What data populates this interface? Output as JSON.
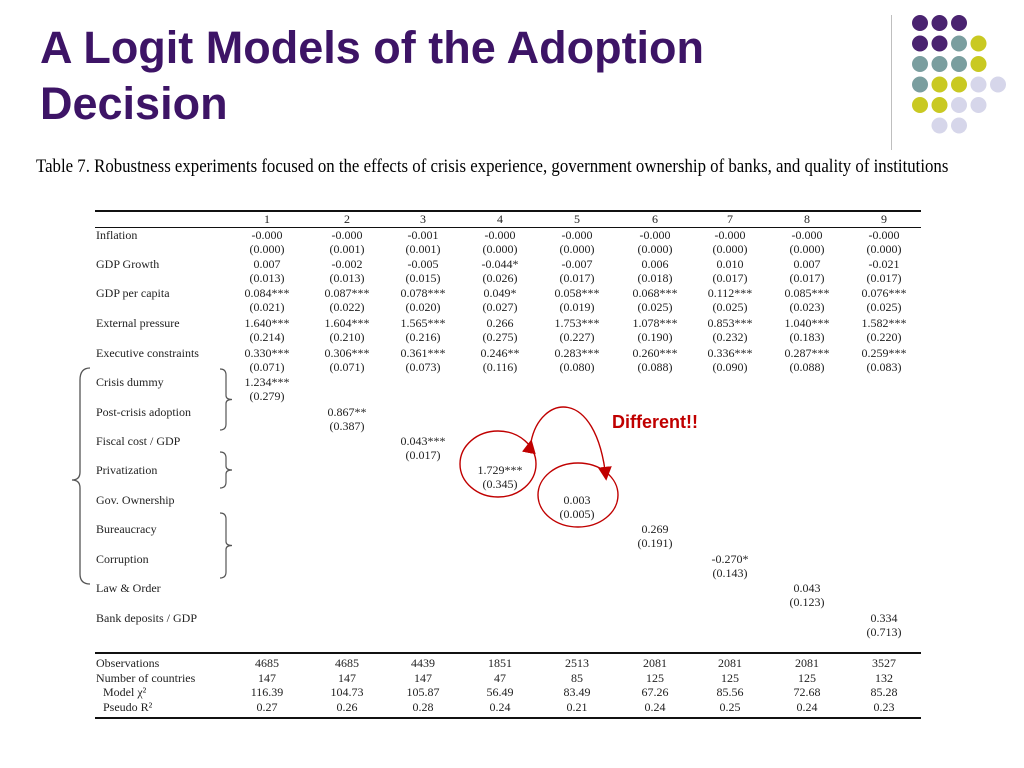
{
  "slide": {
    "title": "A Logit Models of the Adoption Decision",
    "caption": "Table 7.  Robustness experiments focused on the effects of crisis experience, government ownership of banks, and quality of institutions",
    "annotation": "Different!!",
    "accent_colors": {
      "purple": "#4a2370",
      "teal": "#7a9e9f",
      "yellow": "#c9c922",
      "lavender": "#d6d6ea",
      "red": "#c00000"
    }
  },
  "table": {
    "columns": [
      "1",
      "2",
      "3",
      "4",
      "5",
      "6",
      "7",
      "8",
      "9"
    ],
    "rows": [
      {
        "label": "Inflation",
        "cells": [
          [
            "-0.000",
            "(0.000)"
          ],
          [
            "-0.000",
            "(0.001)"
          ],
          [
            "-0.001",
            "(0.001)"
          ],
          [
            "-0.000",
            "(0.000)"
          ],
          [
            "-0.000",
            "(0.000)"
          ],
          [
            "-0.000",
            "(0.000)"
          ],
          [
            "-0.000",
            "(0.000)"
          ],
          [
            "-0.000",
            "(0.000)"
          ],
          [
            "-0.000",
            "(0.000)"
          ]
        ]
      },
      {
        "label": "GDP Growth",
        "cells": [
          [
            "0.007",
            "(0.013)"
          ],
          [
            "-0.002",
            "(0.013)"
          ],
          [
            "-0.005",
            "(0.015)"
          ],
          [
            "-0.044*",
            "(0.026)"
          ],
          [
            "-0.007",
            "(0.017)"
          ],
          [
            "0.006",
            "(0.018)"
          ],
          [
            "0.010",
            "(0.017)"
          ],
          [
            "0.007",
            "(0.017)"
          ],
          [
            "-0.021",
            "(0.017)"
          ]
        ]
      },
      {
        "label": "GDP per capita",
        "cells": [
          [
            "0.084***",
            "(0.021)"
          ],
          [
            "0.087***",
            "(0.022)"
          ],
          [
            "0.078***",
            "(0.020)"
          ],
          [
            "0.049*",
            "(0.027)"
          ],
          [
            "0.058***",
            "(0.019)"
          ],
          [
            "0.068***",
            "(0.025)"
          ],
          [
            "0.112***",
            "(0.025)"
          ],
          [
            "0.085***",
            "(0.023)"
          ],
          [
            "0.076***",
            "(0.025)"
          ]
        ]
      },
      {
        "label": "External pressure",
        "cells": [
          [
            "1.640***",
            "(0.214)"
          ],
          [
            "1.604***",
            "(0.210)"
          ],
          [
            "1.565***",
            "(0.216)"
          ],
          [
            "0.266",
            "(0.275)"
          ],
          [
            "1.753***",
            "(0.227)"
          ],
          [
            "1.078***",
            "(0.190)"
          ],
          [
            "0.853***",
            "(0.232)"
          ],
          [
            "1.040***",
            "(0.183)"
          ],
          [
            "1.582***",
            "(0.220)"
          ]
        ]
      },
      {
        "label": "Executive constraints",
        "cells": [
          [
            "0.330***",
            "(0.071)"
          ],
          [
            "0.306***",
            "(0.071)"
          ],
          [
            "0.361***",
            "(0.073)"
          ],
          [
            "0.246**",
            "(0.116)"
          ],
          [
            "0.283***",
            "(0.080)"
          ],
          [
            "0.260***",
            "(0.088)"
          ],
          [
            "0.336***",
            "(0.090)"
          ],
          [
            "0.287***",
            "(0.088)"
          ],
          [
            "0.259***",
            "(0.083)"
          ]
        ]
      },
      {
        "label": "Crisis dummy",
        "cells": [
          [
            "1.234***",
            "(0.279)"
          ],
          null,
          null,
          null,
          null,
          null,
          null,
          null,
          null
        ]
      },
      {
        "label": "Post-crisis adoption",
        "cells": [
          null,
          [
            "0.867**",
            "(0.387)"
          ],
          null,
          null,
          null,
          null,
          null,
          null,
          null
        ]
      },
      {
        "label": "Fiscal cost / GDP",
        "cells": [
          null,
          null,
          [
            "0.043***",
            "(0.017)"
          ],
          null,
          null,
          null,
          null,
          null,
          null
        ]
      },
      {
        "label": "Privatization",
        "cells": [
          null,
          null,
          null,
          [
            "1.729***",
            "(0.345)"
          ],
          null,
          null,
          null,
          null,
          null
        ]
      },
      {
        "label": "Gov. Ownership",
        "cells": [
          null,
          null,
          null,
          null,
          [
            "0.003",
            "(0.005)"
          ],
          null,
          null,
          null,
          null
        ]
      },
      {
        "label": "Bureaucracy",
        "cells": [
          null,
          null,
          null,
          null,
          null,
          [
            "0.269",
            "(0.191)"
          ],
          null,
          null,
          null
        ]
      },
      {
        "label": "Corruption",
        "cells": [
          null,
          null,
          null,
          null,
          null,
          null,
          [
            "-0.270*",
            "(0.143)"
          ],
          null,
          null
        ]
      },
      {
        "label": "Law & Order",
        "cells": [
          null,
          null,
          null,
          null,
          null,
          null,
          null,
          [
            "0.043",
            "(0.123)"
          ],
          null
        ]
      },
      {
        "label": "Bank deposits / GDP",
        "cells": [
          null,
          null,
          null,
          null,
          null,
          null,
          null,
          null,
          [
            "0.334",
            "(0.713)"
          ]
        ]
      }
    ],
    "stats": [
      {
        "label": "Observations",
        "values": [
          "4685",
          "4685",
          "4439",
          "1851",
          "2513",
          "2081",
          "2081",
          "2081",
          "3527"
        ]
      },
      {
        "label": "Number of countries",
        "values": [
          "147",
          "147",
          "147",
          "47",
          "85",
          "125",
          "125",
          "125",
          "132"
        ]
      },
      {
        "label": "Model χ²",
        "values": [
          "116.39",
          "104.73",
          "105.87",
          "56.49",
          "83.49",
          "67.26",
          "85.56",
          "72.68",
          "85.28"
        ]
      },
      {
        "label": "Pseudo R²",
        "values": [
          "0.27",
          "0.26",
          "0.28",
          "0.24",
          "0.21",
          "0.24",
          "0.25",
          "0.24",
          "0.23"
        ]
      }
    ]
  }
}
